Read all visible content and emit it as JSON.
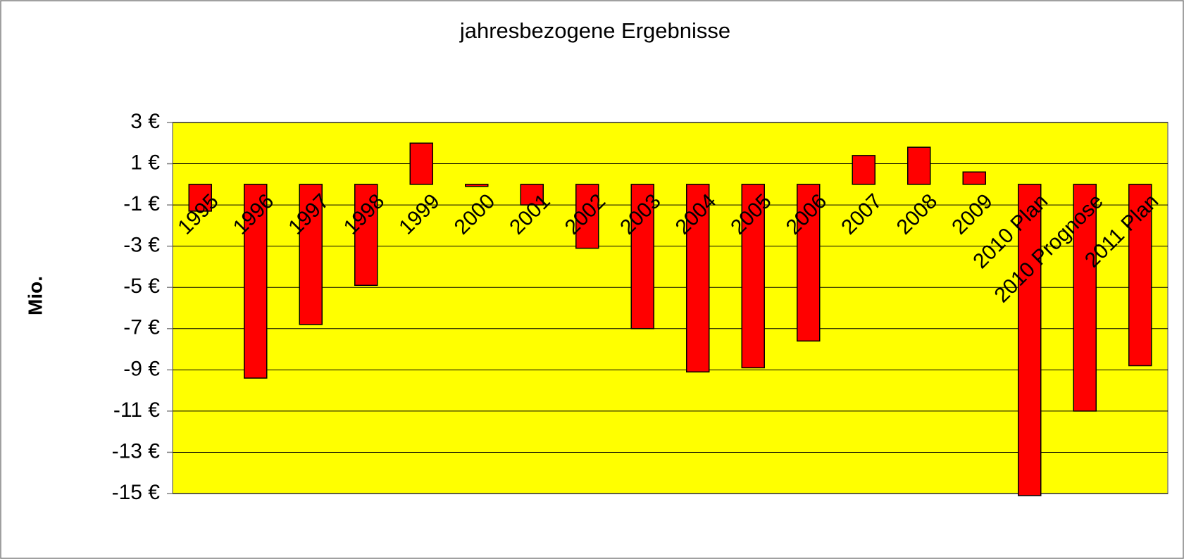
{
  "chart_data": {
    "type": "bar",
    "title": "jahresbezogene Ergebnisse",
    "y_label": "Mio.",
    "categories": [
      "1995",
      "1996",
      "1997",
      "1998",
      "1999",
      "2000",
      "2001",
      "2002",
      "2003",
      "2004",
      "2005",
      "2006",
      "2007",
      "2008",
      "2009",
      "2010 Plan",
      "2010 Prognose",
      "2011 Plan"
    ],
    "values": [
      -1.3,
      -9.4,
      -6.8,
      -4.9,
      2.0,
      -0.1,
      -1.0,
      -3.1,
      -7.0,
      -9.1,
      -8.9,
      -7.6,
      1.4,
      1.8,
      0.6,
      -15.1,
      -11.0,
      -8.8
    ],
    "color": "#ff0000",
    "plot_background": "#ffff00",
    "ylim": [
      -15,
      3
    ],
    "yticks": [
      {
        "value": -15,
        "label": "-15 €"
      },
      {
        "value": -13,
        "label": "-13 €"
      },
      {
        "value": -11,
        "label": "-11 €"
      },
      {
        "value": -9,
        "label": "-9 €"
      },
      {
        "value": -7,
        "label": "-7 €"
      },
      {
        "value": -5,
        "label": "-5 €"
      },
      {
        "value": -3,
        "label": "-3 €"
      },
      {
        "value": -1,
        "label": "-1 €"
      },
      {
        "value": 1,
        "label": "1 €"
      },
      {
        "value": 3,
        "label": "3 €"
      }
    ],
    "grid": true
  }
}
